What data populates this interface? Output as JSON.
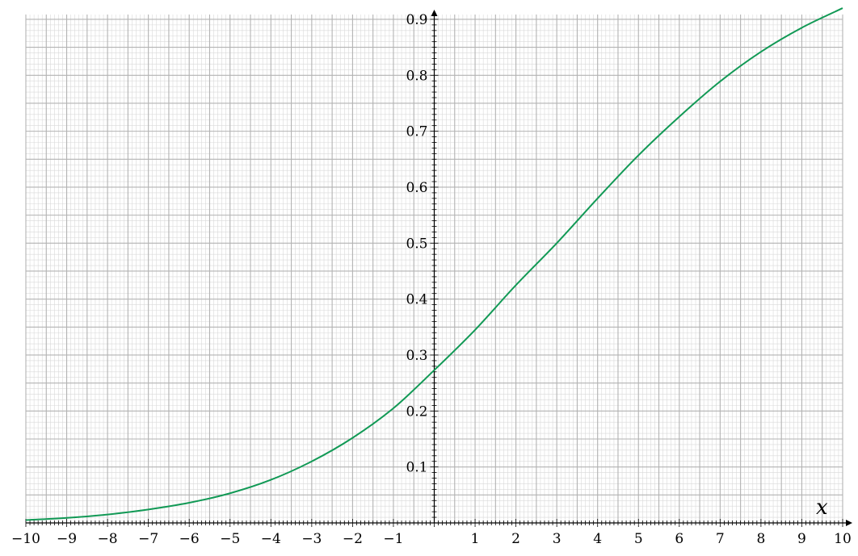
{
  "chart_data": {
    "type": "line",
    "xlabel": "x",
    "ylabel": "",
    "xlim": [
      -10,
      10
    ],
    "ylim": [
      0,
      0.92
    ],
    "grid": true,
    "x_ticks": [
      -10,
      -9,
      -8,
      -7,
      -6,
      -5,
      -4,
      -3,
      -2,
      -1,
      1,
      2,
      3,
      4,
      5,
      6,
      7,
      8,
      9,
      10
    ],
    "x_tick_labels": [
      "−10",
      "−9",
      "−8",
      "−7",
      "−6",
      "−5",
      "−4",
      "−3",
      "−2",
      "−1",
      "1",
      "2",
      "3",
      "4",
      "5",
      "6",
      "7",
      "8",
      "9",
      "10"
    ],
    "y_ticks": [
      0.1,
      0.2,
      0.3,
      0.4,
      0.5,
      0.6,
      0.7,
      0.8,
      0.9
    ],
    "y_tick_labels": [
      "0.1",
      "0.2",
      "0.3",
      "0.4",
      "0.5",
      "0.6",
      "0.7",
      "0.8",
      "0.9"
    ],
    "series": [
      {
        "color": "#119955",
        "x": [
          -10,
          -9,
          -8,
          -7,
          -6,
          -5,
          -4,
          -3,
          -2,
          -1,
          0,
          1,
          2,
          3,
          4,
          5,
          6,
          7,
          8,
          9,
          10
        ],
        "y": [
          0.005,
          0.009,
          0.015,
          0.024,
          0.036,
          0.053,
          0.077,
          0.11,
          0.152,
          0.205,
          0.273,
          0.345,
          0.425,
          0.5,
          0.58,
          0.657,
          0.726,
          0.789,
          0.842,
          0.885,
          0.92
        ]
      }
    ]
  }
}
